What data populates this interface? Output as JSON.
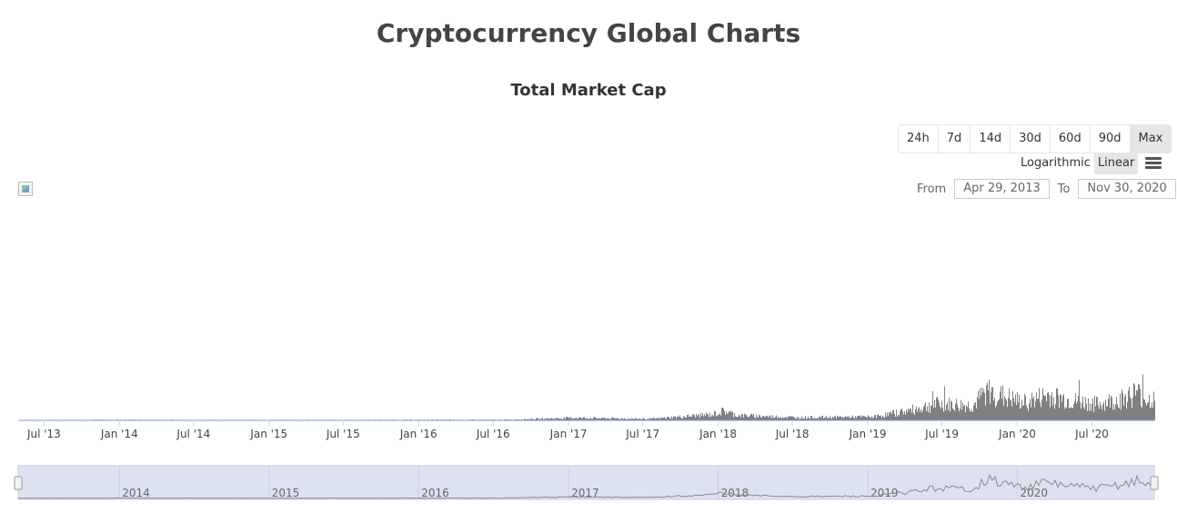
{
  "page": {
    "title": "Cryptocurrency Global Charts"
  },
  "range_buttons": [
    "24h",
    "7d",
    "14d",
    "30d",
    "60d",
    "90d",
    "Max"
  ],
  "range_active": "Max",
  "scale": {
    "logarithmic_label": "Logarithmic",
    "linear_label": "Linear",
    "active": "Linear"
  },
  "date_range": {
    "from_label": "From",
    "from_value": "Apr 29, 2013",
    "to_label": "To",
    "to_value": "Nov 30, 2020"
  },
  "colors": {
    "volume_bars": "#808080",
    "market_cap_line": "#7a9fd9",
    "navigator_fill": "#dde2f0",
    "navigator_line": "#8a8a8a"
  },
  "chart_data": {
    "type": "bar",
    "title": "Total Market Cap",
    "x_range": [
      "2013-04-29",
      "2020-11-30"
    ],
    "x_ticks": [
      "Jul '13",
      "Jan '14",
      "Jul '14",
      "Jan '15",
      "Jul '15",
      "Jan '16",
      "Jul '16",
      "Jan '17",
      "Jul '17",
      "Jan '18",
      "Jul '18",
      "Jan '19",
      "Jul '19",
      "Jan '20",
      "Jul '20"
    ],
    "navigator_ticks": [
      "2014",
      "2015",
      "2016",
      "2017",
      "2018",
      "2019",
      "2020"
    ],
    "series": [
      {
        "x": [
          "2013-07",
          "2014-01",
          "2014-07",
          "2015-01",
          "2015-07",
          "2016-01",
          "2016-07",
          "2016-12",
          "2017-01",
          "2017-07",
          "2017-12",
          "2018-01",
          "2018-02",
          "2018-07",
          "2019-01",
          "2019-04",
          "2019-06",
          "2019-09",
          "2019-10",
          "2020-01",
          "2020-03",
          "2020-05",
          "2020-07",
          "2020-09",
          "2020-10",
          "2020-11"
        ],
        "y": [
          0.3,
          0.4,
          0.3,
          0.3,
          0.3,
          0.4,
          0.4,
          1.5,
          1.8,
          1.0,
          4.0,
          6.5,
          3.5,
          2.0,
          2.5,
          7.0,
          11.0,
          10.0,
          20.0,
          12.0,
          17.0,
          13.0,
          11.0,
          15.0,
          19.0,
          14.0
        ]
      }
    ],
    "grid": false,
    "legend": "none"
  }
}
